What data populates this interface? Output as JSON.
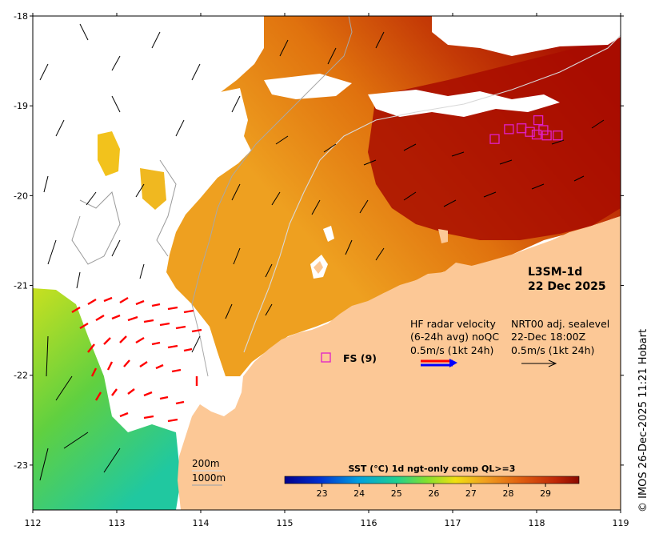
{
  "map": {
    "x_ticks": [
      "112",
      "113",
      "114",
      "115",
      "116",
      "117",
      "118",
      "119"
    ],
    "y_ticks": [
      "-18",
      "-19",
      "-20",
      "-21",
      "-22",
      "-23"
    ],
    "x_range": [
      112,
      119
    ],
    "y_range": [
      -23.5,
      -18
    ]
  },
  "colors": {
    "land": "#fcc896",
    "sst_high": "#b01400",
    "sst_mid": "#e3780c",
    "sst_low": "#f2c01c",
    "radar_red": "#ff0000",
    "marker_magenta": "#e020c8"
  },
  "labels": {
    "product": "L3SM-1d",
    "date": "22 Dec 2025",
    "hf_title": "HF radar velocity",
    "hf_sub": "(6-24h avg) noQC",
    "hf_scale": "0.5m/s (1kt 24h)",
    "nrt_title": "NRT00 adj. sealevel",
    "nrt_time": "22-Dec 18:00Z",
    "nrt_scale": "0.5m/s (1kt 24h)",
    "fs_label": "FS (9)",
    "contour_200": "200m",
    "contour_1000": "1000m",
    "credit": "© IMOS 26-Dec-2025 11:21 Hobart"
  },
  "colorbar": {
    "title": "SST (°C) 1d ngt-only comp QL>=3",
    "ticks": [
      "23",
      "24",
      "25",
      "26",
      "27",
      "28",
      "29"
    ],
    "tick_values": [
      23,
      24,
      25,
      26,
      27,
      28,
      29
    ],
    "range": [
      22,
      29.9
    ]
  },
  "stations": [
    {
      "lon": 118.02,
      "lat": -19.16
    },
    {
      "lon": 117.67,
      "lat": -19.26
    },
    {
      "lon": 117.82,
      "lat": -19.25
    },
    {
      "lon": 117.92,
      "lat": -19.29
    },
    {
      "lon": 118.08,
      "lat": -19.27
    },
    {
      "lon": 117.5,
      "lat": -19.37
    },
    {
      "lon": 118.0,
      "lat": -19.32
    },
    {
      "lon": 118.12,
      "lat": -19.33
    },
    {
      "lon": 118.25,
      "lat": -19.33
    }
  ]
}
